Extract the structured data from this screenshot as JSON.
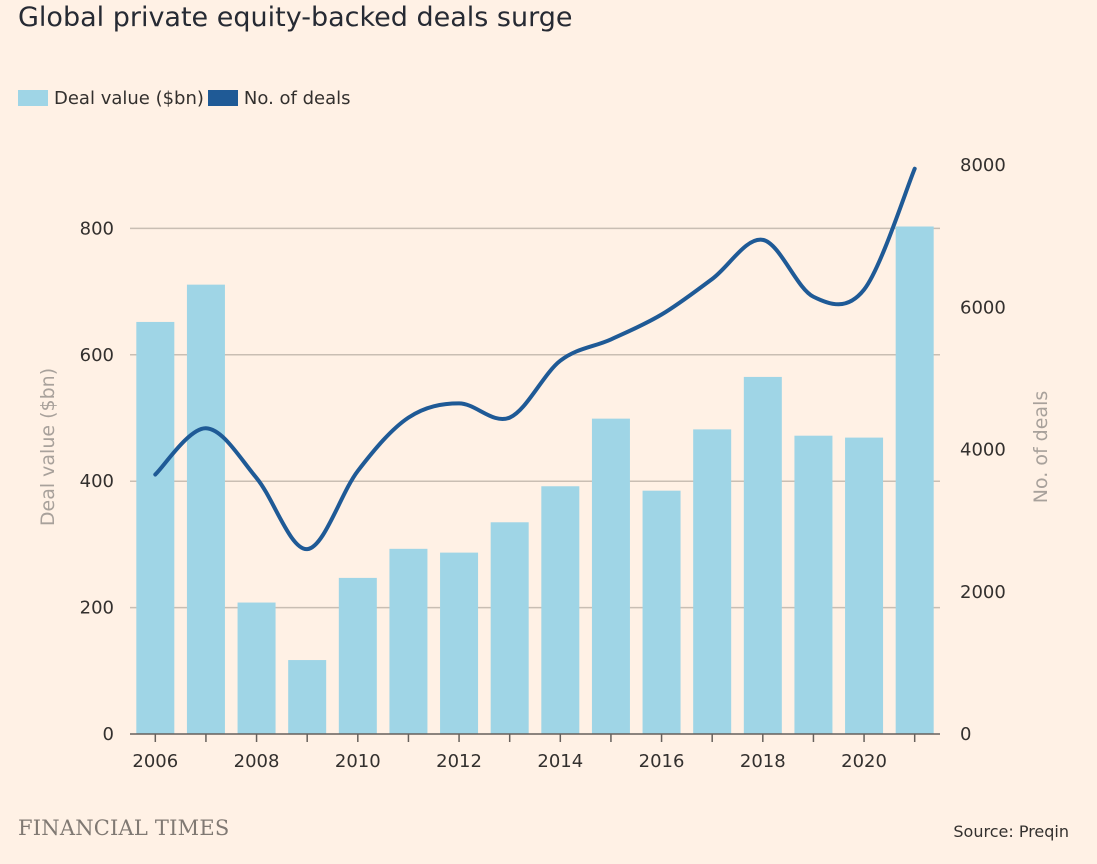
{
  "header": {
    "title": "Global private equity-backed deals surge"
  },
  "legend": {
    "items": [
      {
        "label": "Deal value ($bn)",
        "color": "#9fd5e6"
      },
      {
        "label": "No. of deals",
        "color": "#1f5a96"
      }
    ]
  },
  "footer": {
    "logo": "FINANCIAL TIMES",
    "source": "Source: Preqin"
  },
  "chart_data": {
    "type": "bar",
    "title": "Global private equity-backed deals surge",
    "ylabel": "Deal value ($bn)",
    "y2label": "No. of deals",
    "categories": [
      2006,
      2007,
      2008,
      2009,
      2010,
      2011,
      2012,
      2013,
      2014,
      2015,
      2016,
      2017,
      2018,
      2019,
      2020,
      2021
    ],
    "x_tick_labels": [
      "2006",
      "2008",
      "2010",
      "2012",
      "2014",
      "2016",
      "2018",
      "2020"
    ],
    "ylim": [
      0,
      900
    ],
    "y_ticks": [
      0,
      200,
      400,
      600,
      800
    ],
    "y2lim": [
      0,
      8000
    ],
    "y2_ticks": [
      0,
      2000,
      4000,
      6000,
      8000
    ],
    "grid": true,
    "legend_position": "top-left",
    "series": [
      {
        "name": "Deal value ($bn)",
        "type": "bar",
        "axis": "left",
        "color": "#9fd5e6",
        "values": [
          652,
          711,
          208,
          117,
          247,
          293,
          287,
          335,
          392,
          499,
          385,
          482,
          565,
          472,
          469,
          803
        ]
      },
      {
        "name": "No. of deals",
        "type": "line",
        "axis": "right",
        "color": "#1f5a96",
        "values": [
          3650,
          4300,
          3600,
          2600,
          3700,
          4450,
          4650,
          4450,
          5250,
          5550,
          5900,
          6400,
          6950,
          6150,
          6250,
          7950
        ]
      }
    ]
  }
}
